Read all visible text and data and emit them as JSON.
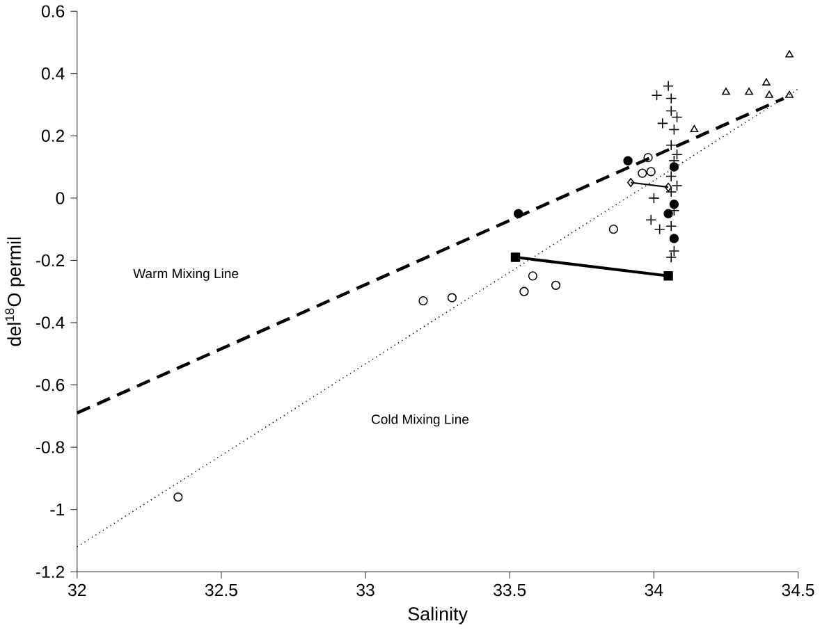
{
  "chart_data": {
    "type": "scatter",
    "xlabel": "Salinity",
    "ylabel": "del$^{18}$O permil",
    "xlim": [
      32,
      34.5
    ],
    "ylim": [
      -1.2,
      0.6
    ],
    "xticks": [
      32,
      32.5,
      33,
      33.5,
      34,
      34.5
    ],
    "yticks": [
      -1.2,
      -1,
      -0.8,
      -0.6,
      -0.4,
      -0.2,
      0,
      0.2,
      0.4,
      0.6
    ],
    "grid": false,
    "annotations": [
      "Warm Mixing Line",
      "Cold Mixing Line"
    ],
    "series": [
      {
        "type": "line",
        "line_style": "dashed",
        "marker": "none",
        "color": "#000000",
        "x": [
          32,
          34.45
        ],
        "values": [
          -0.69,
          0.32
        ]
      },
      {
        "type": "line",
        "line_style": "dotted",
        "marker": "none",
        "color": "#000000",
        "x": [
          32,
          34.5
        ],
        "values": [
          -1.12,
          0.35
        ]
      },
      {
        "marker": "circle",
        "color": "#000000",
        "x": [
          32.35,
          33.2,
          33.3,
          33.55,
          33.58,
          33.66,
          33.86,
          33.96,
          33.99,
          33.98
        ],
        "values": [
          -0.96,
          -0.33,
          -0.32,
          -0.3,
          -0.25,
          -0.28,
          -0.1,
          0.08,
          0.085,
          0.13
        ]
      },
      {
        "marker": "circle",
        "color": "#000000",
        "x": [
          33.53,
          33.91,
          34.05,
          34.07,
          34.07,
          34.07
        ],
        "values": [
          -0.05,
          0.12,
          -0.05,
          -0.02,
          -0.13,
          0.1
        ]
      },
      {
        "marker": "cross",
        "color": "#000000",
        "x": [
          34.01,
          34.05,
          34.06,
          34.06,
          34.03,
          34.07,
          34.06,
          34.07,
          34.06,
          34.0,
          34.06,
          33.99,
          34.02,
          34.06,
          34.06,
          34.07,
          34.08,
          34.08,
          34.08,
          34.07
        ],
        "values": [
          0.33,
          0.36,
          0.32,
          0.28,
          0.24,
          0.22,
          0.17,
          0.12,
          0.07,
          0.0,
          0.02,
          -0.07,
          -0.1,
          -0.09,
          -0.19,
          -0.17,
          0.26,
          0.14,
          0.04,
          -0.04
        ]
      },
      {
        "marker": "triangle",
        "color": "#000000",
        "x": [
          34.14,
          34.25,
          34.33,
          34.39,
          34.4,
          34.47,
          34.47
        ],
        "values": [
          0.22,
          0.34,
          0.34,
          0.37,
          0.33,
          0.46,
          0.33
        ]
      },
      {
        "type": "line",
        "line_style": "solid",
        "marker": "diamond",
        "color": "#000000",
        "x": [
          33.92,
          34.05
        ],
        "values": [
          0.05,
          0.035
        ]
      },
      {
        "type": "line",
        "line_style": "solid",
        "marker": "square",
        "color": "#000000",
        "x": [
          33.52,
          34.05
        ],
        "values": [
          -0.19,
          -0.25
        ]
      }
    ]
  }
}
